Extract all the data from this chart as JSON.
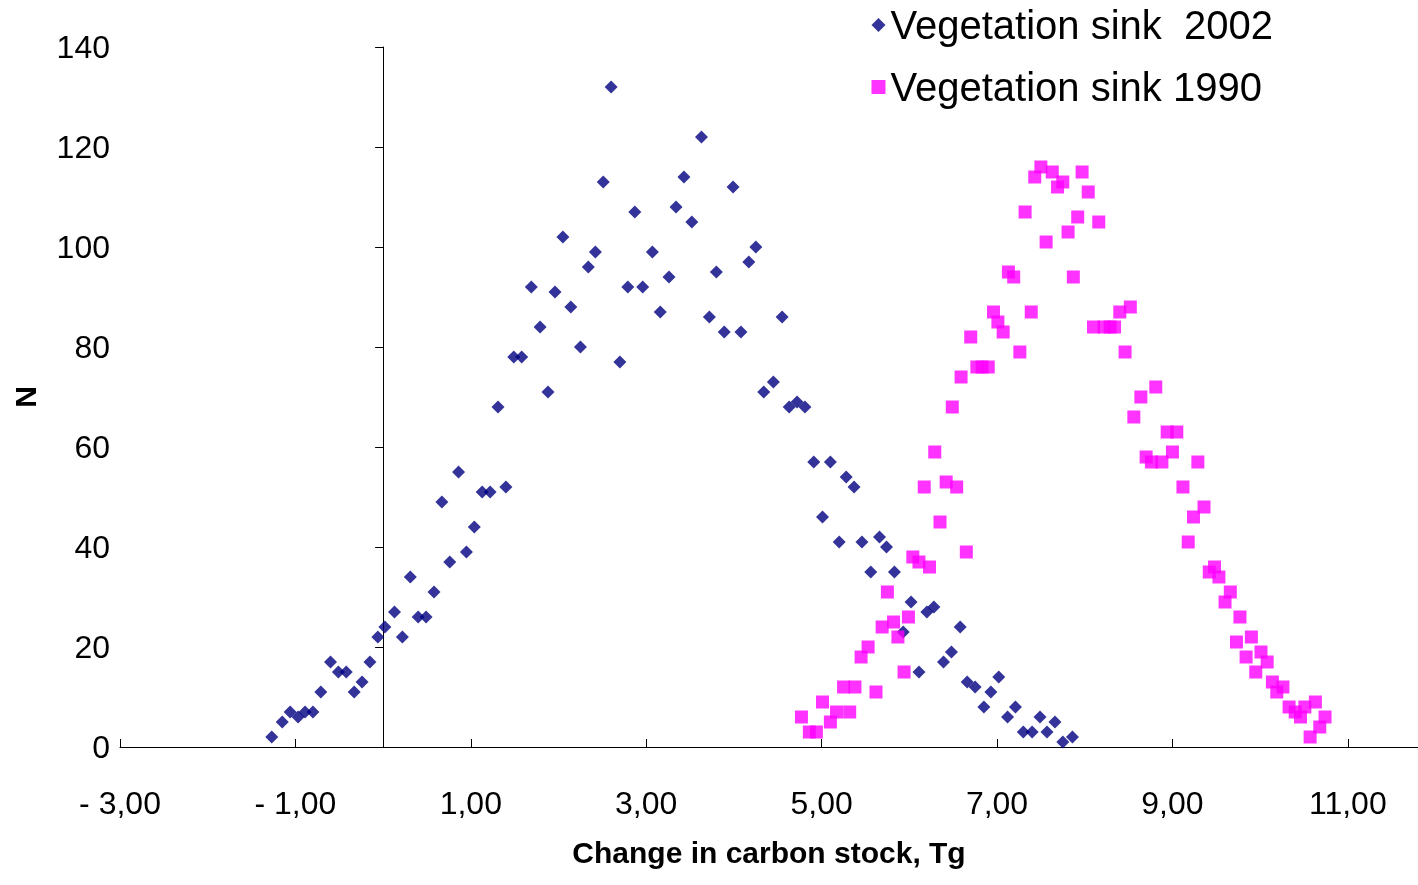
{
  "chart_data": {
    "type": "scatter",
    "xlabel": "Change in carbon stock, Tg",
    "ylabel": "N",
    "xlim": [
      -3,
      11.8
    ],
    "ylim": [
      0,
      140
    ],
    "xticks": [
      {
        "value": -3,
        "label": "- 3,00"
      },
      {
        "value": -1,
        "label": "- 1,00"
      },
      {
        "value": 1,
        "label": "1,00"
      },
      {
        "value": 3,
        "label": "3,00"
      },
      {
        "value": 5,
        "label": "5,00"
      },
      {
        "value": 7,
        "label": "7,00"
      },
      {
        "value": 9,
        "label": "9,00"
      },
      {
        "value": 11,
        "label": "11,00"
      }
    ],
    "yticks": [
      0,
      20,
      40,
      60,
      80,
      100,
      120,
      140
    ],
    "grid": false,
    "legend": "top right",
    "series": [
      {
        "name": "Vegetation sink  2002",
        "color": "#000080",
        "marker": "diamond",
        "x": [
          -1.27,
          -1.15,
          -1.06,
          -0.97,
          -0.89,
          -0.8,
          -0.71,
          -0.6,
          -0.51,
          -0.42,
          -0.33,
          -0.24,
          -0.15,
          -0.06,
          0.02,
          0.13,
          0.22,
          0.31,
          0.4,
          0.49,
          0.58,
          0.67,
          0.76,
          0.86,
          0.95,
          1.04,
          1.13,
          1.22,
          1.31,
          1.4,
          1.49,
          1.58,
          1.69,
          1.79,
          1.88,
          1.96,
          2.05,
          2.14,
          2.25,
          2.34,
          2.42,
          2.51,
          2.6,
          2.7,
          2.79,
          2.87,
          2.96,
          3.07,
          3.16,
          3.26,
          3.34,
          3.43,
          3.52,
          3.63,
          3.72,
          3.8,
          3.89,
          3.99,
          4.08,
          4.17,
          4.25,
          4.34,
          4.45,
          4.55,
          4.63,
          4.72,
          4.81,
          4.91,
          5.01,
          5.1,
          5.2,
          5.28,
          5.37,
          5.46,
          5.56,
          5.66,
          5.74,
          5.83,
          5.93,
          6.02,
          6.11,
          6.2,
          6.28,
          6.39,
          6.48,
          6.58,
          6.66,
          6.75,
          6.85,
          6.93,
          7.02,
          7.12,
          7.21,
          7.3,
          7.4,
          7.49,
          7.57,
          7.66,
          7.75,
          7.86
        ],
        "values": [
          2,
          5,
          7,
          6,
          7,
          7,
          11,
          17,
          15,
          15,
          11,
          13,
          17,
          22,
          24,
          27,
          22,
          34,
          26,
          26,
          31,
          49,
          37,
          55,
          39,
          44,
          51,
          51,
          68,
          52,
          78,
          78,
          92,
          84,
          71,
          91,
          102,
          88,
          80,
          96,
          99,
          113,
          132,
          77,
          92,
          107,
          92,
          99,
          87,
          94,
          108,
          114,
          105,
          122,
          86,
          95,
          83,
          112,
          83,
          97,
          100,
          71,
          73,
          86,
          68,
          69,
          68,
          57,
          46,
          57,
          41,
          54,
          52,
          41,
          35,
          42,
          40,
          35,
          23,
          29,
          15,
          27,
          28,
          17,
          19,
          24,
          13,
          12,
          8,
          11,
          14,
          6,
          8,
          3,
          3,
          6,
          3,
          5,
          1,
          2
        ]
      },
      {
        "name": "Vegetation sink 1990",
        "color": "#ff00ff",
        "marker": "square",
        "x": [
          4.77,
          4.86,
          4.94,
          5.01,
          5.1,
          5.17,
          5.25,
          5.32,
          5.38,
          5.45,
          5.53,
          5.62,
          5.69,
          5.75,
          5.82,
          5.87,
          5.94,
          5.99,
          6.04,
          6.11,
          6.17,
          6.23,
          6.29,
          6.35,
          6.42,
          6.49,
          6.54,
          6.59,
          6.65,
          6.7,
          6.77,
          6.83,
          6.9,
          6.96,
          7.01,
          7.07,
          7.13,
          7.19,
          7.26,
          7.32,
          7.39,
          7.43,
          7.5,
          7.56,
          7.63,
          7.69,
          7.75,
          7.81,
          7.87,
          7.92,
          7.97,
          8.04,
          8.1,
          8.16,
          8.22,
          8.29,
          8.34,
          8.4,
          8.46,
          8.52,
          8.56,
          8.64,
          8.7,
          8.76,
          8.81,
          8.88,
          8.94,
          9.0,
          9.05,
          9.12,
          9.18,
          9.24,
          9.29,
          9.36,
          9.42,
          9.48,
          9.53,
          9.6,
          9.66,
          9.73,
          9.77,
          9.84,
          9.9,
          9.95,
          10.01,
          10.08,
          10.14,
          10.19,
          10.26,
          10.33,
          10.4,
          10.46,
          10.51,
          10.57,
          10.63,
          10.68,
          10.74
        ],
        "values": [
          6,
          3,
          3,
          9,
          5,
          7,
          12,
          7,
          12,
          18,
          20,
          11,
          24,
          31,
          25,
          22,
          15,
          26,
          38,
          37,
          52,
          36,
          59,
          45,
          53,
          68,
          52,
          74,
          39,
          82,
          76,
          76,
          76,
          87,
          85,
          83,
          95,
          94,
          79,
          107,
          87,
          114,
          116,
          101,
          115,
          112,
          113,
          103,
          94,
          106,
          115,
          111,
          84,
          105,
          84,
          84,
          84,
          87,
          79,
          88,
          66,
          70,
          58,
          57,
          72,
          57,
          63,
          59,
          63,
          52,
          41,
          46,
          57,
          48,
          35,
          36,
          34,
          29,
          31,
          21,
          26,
          18,
          22,
          15,
          19,
          17,
          13,
          11,
          12,
          8,
          7,
          6,
          8,
          2,
          9,
          4,
          6
        ]
      }
    ]
  }
}
